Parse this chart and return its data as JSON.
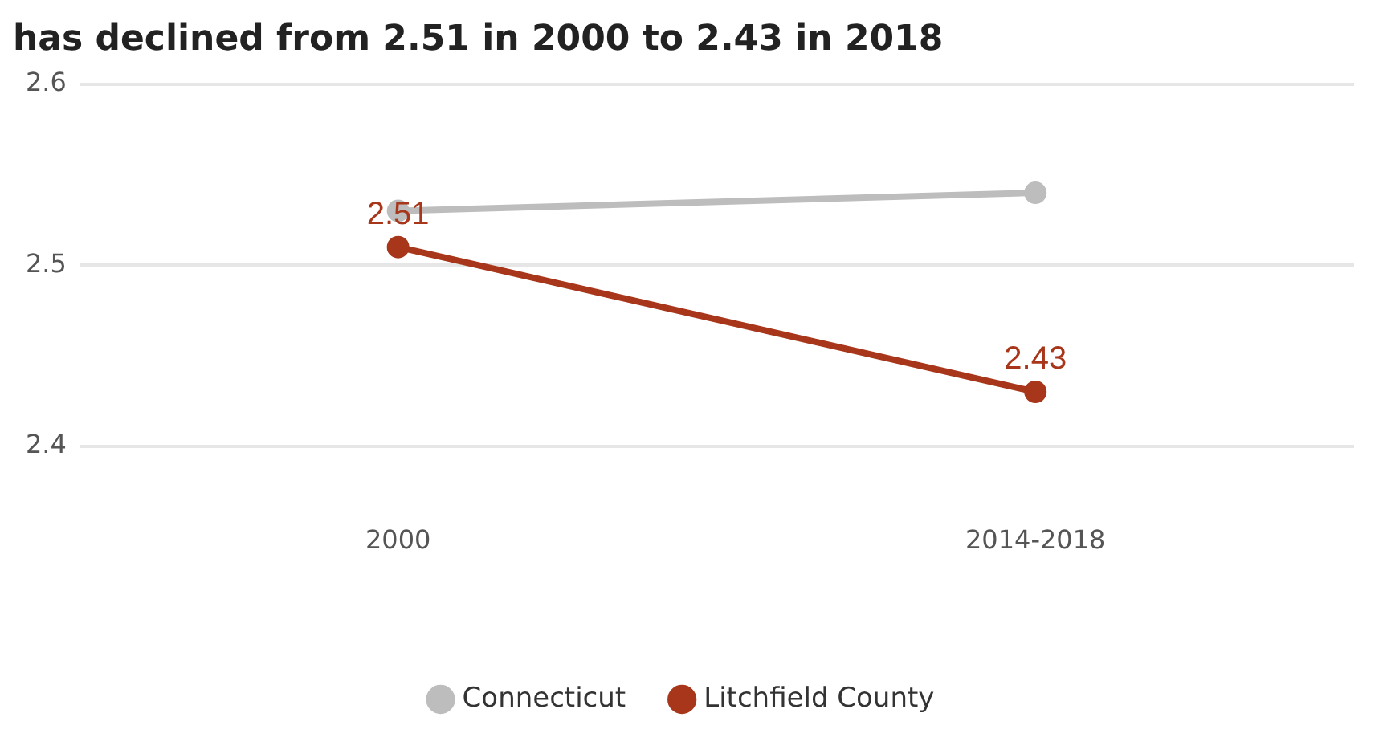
{
  "chart_data": {
    "type": "line",
    "title": "has declined from 2.51 in 2000 to 2.43 in 2018",
    "categories": [
      "2000",
      "2014-2018"
    ],
    "series": [
      {
        "name": "Litchfield County",
        "color": "#a8361a",
        "values": [
          2.51,
          2.43
        ],
        "value_labels": [
          "2.51",
          "2.43"
        ]
      },
      {
        "name": "Connecticut",
        "color": "#bdbdbd",
        "values": [
          2.53,
          2.54
        ]
      }
    ],
    "ylim": [
      2.4,
      2.6
    ],
    "yticks": [
      2.4,
      2.5,
      2.6
    ],
    "grid": "y",
    "legend": "bottom",
    "marker": "circle",
    "line_style": "solid"
  }
}
